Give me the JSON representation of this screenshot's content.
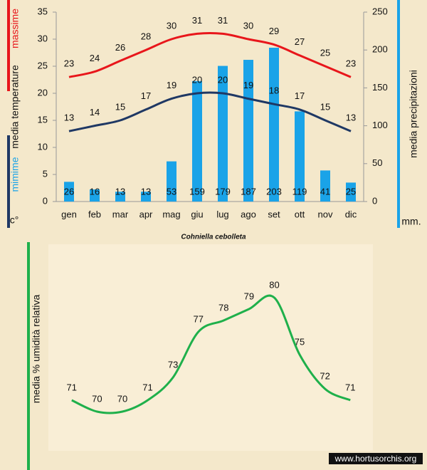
{
  "chart_data": [
    {
      "type": "bar",
      "categories": [
        "gen",
        "feb",
        "mar",
        "apr",
        "mag",
        "giu",
        "lug",
        "ago",
        "set",
        "ott",
        "nov",
        "dic"
      ],
      "series": [
        {
          "name": "massime",
          "type": "line",
          "axis": "y",
          "color": "#e8161b",
          "values": [
            23,
            24,
            26,
            28,
            30,
            31,
            31,
            30,
            29,
            27,
            25,
            23
          ]
        },
        {
          "name": "mimime",
          "type": "line",
          "axis": "y",
          "color": "#1f3864",
          "values": [
            13,
            14,
            15,
            17,
            19,
            20,
            20,
            19,
            18,
            17,
            15,
            13
          ]
        },
        {
          "name": "media  precipitazioni",
          "type": "bar",
          "axis": "y2",
          "color": "#1aa3e8",
          "values": [
            26,
            16,
            13,
            13,
            53,
            159,
            179,
            187,
            203,
            119,
            41,
            25
          ]
        }
      ],
      "y_label": "media  temperature",
      "y_unit": "c°",
      "y2_unit": "mm.",
      "ylim": [
        0,
        35
      ],
      "yticks": [
        0,
        5,
        10,
        15,
        20,
        25,
        30,
        35
      ],
      "y2lim": [
        0,
        250
      ],
      "y2ticks": [
        0,
        50,
        100,
        150,
        200,
        250
      ],
      "caption": "Cohniella cebolleta"
    },
    {
      "type": "line",
      "series": [
        {
          "name": "media % umidità relativa",
          "color": "#1fb04b",
          "values": [
            71,
            70,
            70,
            71,
            73,
            77,
            78,
            79,
            80,
            75,
            72,
            71
          ]
        }
      ],
      "ylim": [
        65,
        84
      ]
    }
  ],
  "watermark": "www.hortusorchis.org"
}
